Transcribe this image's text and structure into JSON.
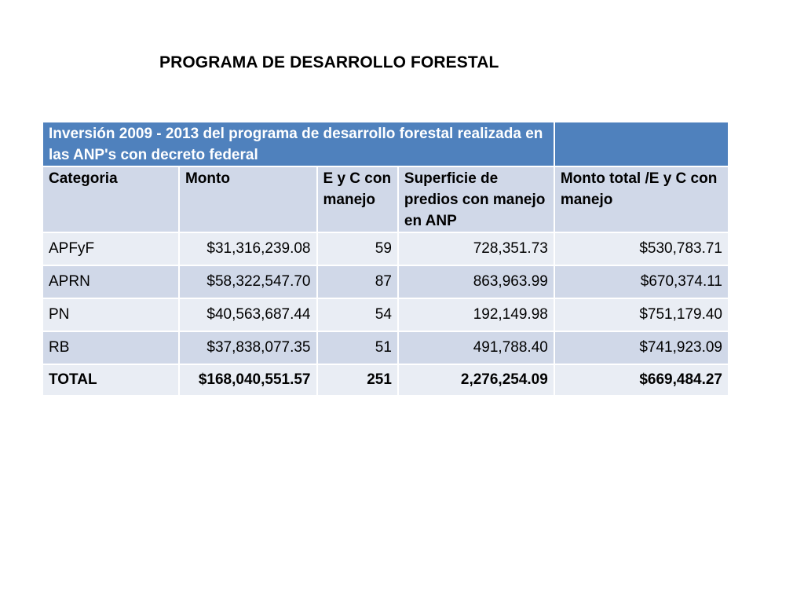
{
  "slide": {
    "title": "PROGRAMA DE DESARROLLO FORESTAL"
  },
  "table": {
    "caption": "Inversión  2009 - 2013 del programa de desarrollo forestal realizada en las ANP's con decreto federal",
    "caption_extra": "",
    "headers": [
      "Categoria",
      "Monto",
      "E y C con manejo",
      "Superficie de predios con manejo en ANP",
      "Monto total /E y C con manejo"
    ],
    "rows": [
      [
        "APFyF",
        "$31,316,239.08",
        "59",
        "728,351.73",
        "$530,783.71"
      ],
      [
        "APRN",
        "$58,322,547.70",
        "87",
        "863,963.99",
        "$670,374.11"
      ],
      [
        "PN",
        "$40,563,687.44",
        "54",
        "192,149.98",
        "$751,179.40"
      ],
      [
        "RB",
        "$37,838,077.35",
        "51",
        "491,788.40",
        "$741,923.09"
      ]
    ],
    "total": [
      "TOTAL",
      "$168,040,551.57",
      "251",
      "2,276,254.09",
      "$669,484.27"
    ]
  },
  "colors": {
    "caption_bg": "#4f81bd",
    "header_bg": "#d0d8e8",
    "row_light": "#e9edf4",
    "row_dark": "#d0d8e8"
  }
}
